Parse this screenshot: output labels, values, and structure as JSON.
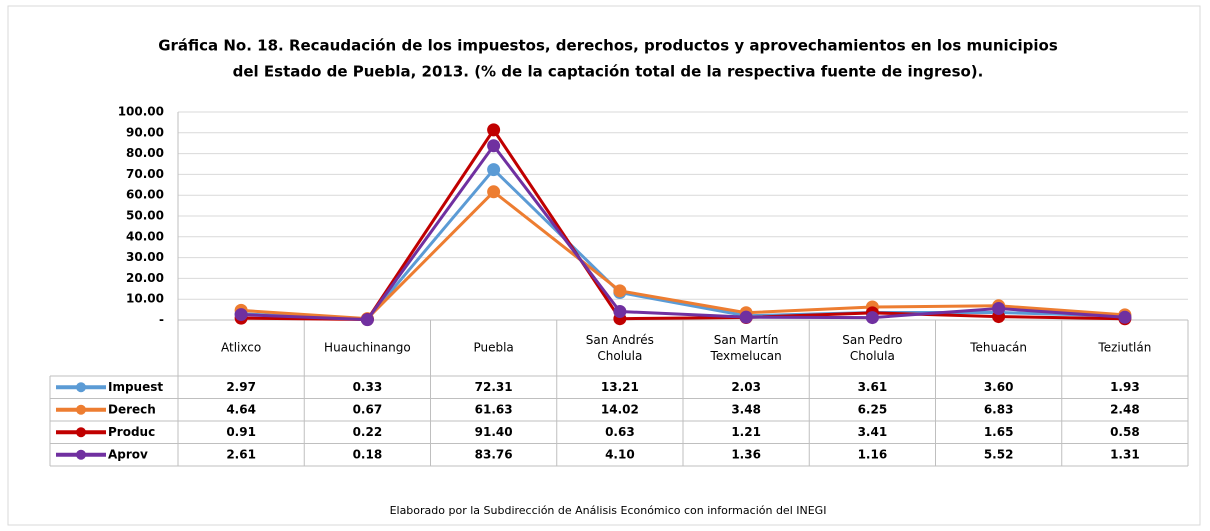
{
  "chart_data": {
    "type": "line",
    "title": [
      "Gráfica No. 18. Recaudación  de los impuestos, derechos, productos y aprovechamientos en los municipios",
      "del Estado de Puebla, 2013. (% de la captación total de la respectiva fuente de ingreso)."
    ],
    "categories": [
      "Atlixco",
      "Huauchinango",
      "Puebla",
      "San Andrés Cholula",
      "San Martín Texmelucan",
      "San Pedro Cholula",
      "Tehuacán",
      "Teziutlán"
    ],
    "series": [
      {
        "name": "Impuest",
        "color": "#5b9bd5",
        "values": [
          2.97,
          0.33,
          72.31,
          13.21,
          2.03,
          3.61,
          3.6,
          1.93
        ],
        "value_labels": [
          "2.97",
          "0.33",
          "72.31",
          "13.21",
          "2.03",
          "3.61",
          "3.60",
          "1.93"
        ]
      },
      {
        "name": "Derech",
        "color": "#ed7d31",
        "values": [
          4.64,
          0.67,
          61.63,
          14.02,
          3.48,
          6.25,
          6.83,
          2.48
        ],
        "value_labels": [
          "4.64",
          "0.67",
          "61.63",
          "14.02",
          "3.48",
          "6.25",
          "6.83",
          "2.48"
        ]
      },
      {
        "name": "Produc",
        "color": "#c00000",
        "values": [
          0.91,
          0.22,
          91.4,
          0.63,
          1.21,
          3.41,
          1.65,
          0.58
        ],
        "value_labels": [
          "0.91",
          "0.22",
          "91.40",
          "0.63",
          "1.21",
          "3.41",
          "1.65",
          "0.58"
        ]
      },
      {
        "name": "Aprov",
        "color": "#7030a0",
        "values": [
          2.61,
          0.18,
          83.76,
          4.1,
          1.36,
          1.16,
          5.52,
          1.31
        ],
        "value_labels": [
          "2.61",
          "0.18",
          "83.76",
          "4.10",
          "1.36",
          "1.16",
          "5.52",
          "1.31"
        ]
      }
    ],
    "ylim": [
      0,
      100
    ],
    "yticks": [
      {
        "value": 0,
        "label": "-"
      },
      {
        "value": 10,
        "label": "10.00"
      },
      {
        "value": 20,
        "label": "20.00"
      },
      {
        "value": 30,
        "label": "30.00"
      },
      {
        "value": 40,
        "label": "40.00"
      },
      {
        "value": 50,
        "label": "50.00"
      },
      {
        "value": 60,
        "label": "60.00"
      },
      {
        "value": 70,
        "label": "70.00"
      },
      {
        "value": 80,
        "label": "80.00"
      },
      {
        "value": 90,
        "label": "90.00"
      },
      {
        "value": 100,
        "label": "100.00"
      }
    ],
    "grid": true,
    "note": "Elaborado por la Subdirección de Análisis Económico con información del INEGI"
  }
}
